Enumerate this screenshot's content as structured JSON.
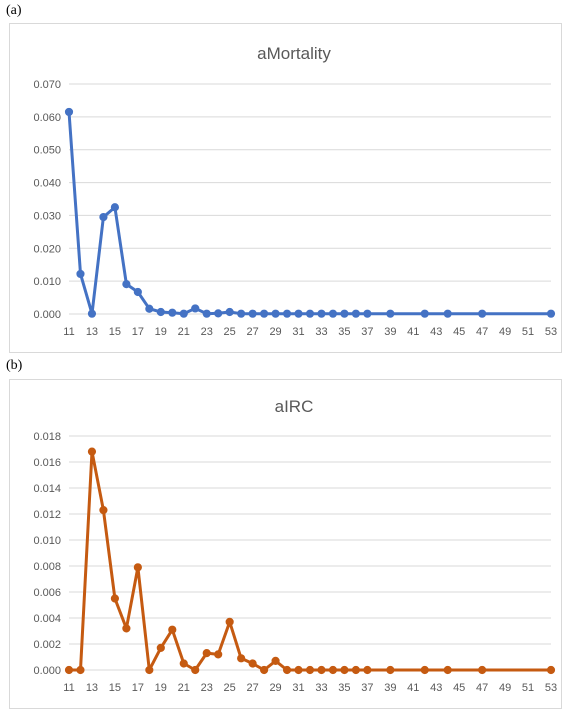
{
  "panels": [
    {
      "label": "(a)"
    },
    {
      "label": "(b)"
    }
  ],
  "chart_data": [
    {
      "type": "line",
      "title": "aMortality",
      "xlabel": "",
      "ylabel": "",
      "color": "#4472C4",
      "ylim": [
        0,
        0.07
      ],
      "yticks": [
        "0.000",
        "0.010",
        "0.020",
        "0.030",
        "0.040",
        "0.050",
        "0.060",
        "0.070"
      ],
      "xlim": [
        11,
        53
      ],
      "xticks": [
        11,
        13,
        15,
        17,
        19,
        21,
        23,
        25,
        27,
        29,
        31,
        33,
        35,
        37,
        39,
        41,
        43,
        45,
        47,
        49,
        51,
        53
      ],
      "grid": true,
      "legend": "none",
      "x": [
        11,
        12,
        13,
        14,
        15,
        16,
        17,
        18,
        19,
        20,
        21,
        22,
        23,
        24,
        25,
        26,
        27,
        28,
        29,
        30,
        31,
        32,
        33,
        34,
        35,
        36,
        37,
        39,
        42,
        44,
        47,
        53
      ],
      "y": [
        0.0615,
        0.0122,
        0.0001,
        0.0295,
        0.0325,
        0.0091,
        0.0067,
        0.0016,
        0.0006,
        0.0004,
        0.0001,
        0.0017,
        0.0001,
        0.0002,
        0.0006,
        0.0001,
        0.0001,
        0.0001,
        0.0001,
        0.0001,
        0.0001,
        0.0001,
        0.0001,
        0.0001,
        0.0001,
        0.0001,
        0.0001,
        0.0001,
        0.0001,
        0.0001,
        0.0001,
        0.0001
      ]
    },
    {
      "type": "line",
      "title": "aIRC",
      "xlabel": "",
      "ylabel": "",
      "color": "#C55A11",
      "ylim": [
        0,
        0.018
      ],
      "yticks": [
        "0.000",
        "0.002",
        "0.004",
        "0.006",
        "0.008",
        "0.010",
        "0.012",
        "0.014",
        "0.016",
        "0.018"
      ],
      "xlim": [
        11,
        53
      ],
      "xticks": [
        11,
        13,
        15,
        17,
        19,
        21,
        23,
        25,
        27,
        29,
        31,
        33,
        35,
        37,
        39,
        41,
        43,
        45,
        47,
        49,
        51,
        53
      ],
      "grid": true,
      "legend": "none",
      "x": [
        11,
        12,
        13,
        14,
        15,
        16,
        17,
        18,
        19,
        20,
        21,
        22,
        23,
        24,
        25,
        26,
        27,
        28,
        29,
        30,
        31,
        32,
        33,
        34,
        35,
        36,
        37,
        39,
        42,
        44,
        47,
        53
      ],
      "y": [
        0.0,
        0.0,
        0.0168,
        0.0123,
        0.0055,
        0.0032,
        0.0079,
        0.0,
        0.0017,
        0.0031,
        0.0005,
        0.0,
        0.0013,
        0.0012,
        0.0037,
        0.0009,
        0.0005,
        0.0,
        0.0007,
        0.0,
        0.0,
        0.0,
        0.0,
        0.0,
        0.0,
        0.0,
        0.0,
        0.0,
        0.0,
        0.0,
        0.0,
        0.0
      ]
    }
  ]
}
